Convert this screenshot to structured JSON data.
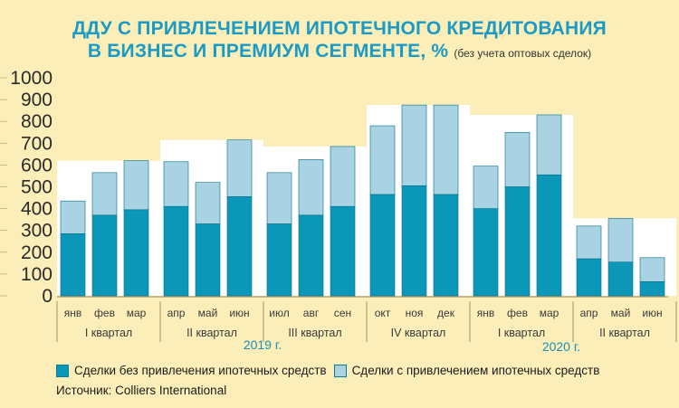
{
  "title_line1": "ДДУ С ПРИВЛЕЧЕНИЕМ ИПОТЕЧНОГО КРЕДИТОВАНИЯ",
  "title_line2": "В БИЗНЕС И ПРЕМИУМ СЕГМЕНТЕ, %",
  "title_note": "(без учета оптовых сделок)",
  "source": "Источник: Colliers International",
  "colors": {
    "without_mortgage": "#0a97b8",
    "with_mortgage": "#a9d3e3",
    "background": "#fbeeb8",
    "title": "#1b9ac6",
    "band": "#ffffff"
  },
  "chart_data": {
    "type": "bar",
    "stacked": true,
    "ylim": [
      0,
      1000
    ],
    "yticks": [
      0,
      100,
      200,
      300,
      400,
      500,
      600,
      700,
      800,
      900,
      1000
    ],
    "categories": [
      "янв",
      "фев",
      "мар",
      "апр",
      "май",
      "июн",
      "июл",
      "авг",
      "сен",
      "окт",
      "ноя",
      "дек",
      "янв",
      "фев",
      "мар",
      "апр",
      "май",
      "июн"
    ],
    "series": [
      {
        "name": "Сделки без привлечения ипотечных средств",
        "values": [
          285,
          370,
          395,
          410,
          330,
          455,
          330,
          370,
          410,
          465,
          505,
          465,
          400,
          500,
          555,
          170,
          155,
          65
        ]
      },
      {
        "name": "Сделки с привлечением ипотечных средств",
        "values": [
          150,
          195,
          225,
          205,
          190,
          260,
          235,
          255,
          275,
          315,
          370,
          410,
          195,
          250,
          275,
          150,
          200,
          110
        ]
      }
    ],
    "quarters": [
      "I квартал",
      "II квартал",
      "III квартал",
      "IV квартал",
      "I квартал",
      "II квартал"
    ],
    "years": [
      "2019 г.",
      "2020 г."
    ]
  }
}
